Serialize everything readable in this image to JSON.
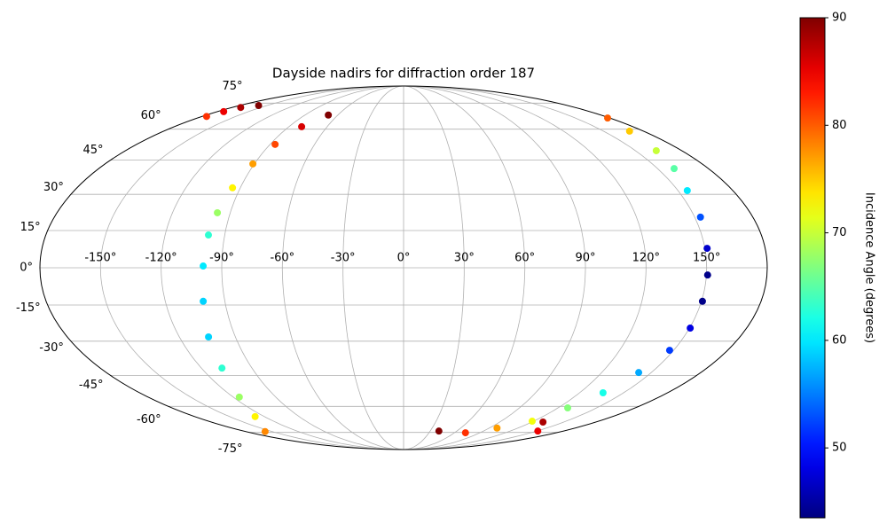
{
  "chart_data": {
    "type": "scatter",
    "projection": "mollweide",
    "colormap": "jet",
    "grid": true,
    "title": "Dayside nadirs for diffraction order 187",
    "colorbar_label": "Incidence Angle (degrees)",
    "xlim": [
      -180,
      180
    ],
    "ylim": [
      -90,
      90
    ],
    "xticks": [
      {
        "value": -150,
        "label": "-150°"
      },
      {
        "value": -120,
        "label": "-120°"
      },
      {
        "value": -90,
        "label": "-90°"
      },
      {
        "value": -60,
        "label": "-60°"
      },
      {
        "value": -30,
        "label": "-30°"
      },
      {
        "value": 0,
        "label": "0°"
      },
      {
        "value": 30,
        "label": "30°"
      },
      {
        "value": 60,
        "label": "60°"
      },
      {
        "value": 90,
        "label": "90°"
      },
      {
        "value": 120,
        "label": "120°"
      },
      {
        "value": 150,
        "label": "150°"
      }
    ],
    "yticks": [
      {
        "value": -75,
        "label": "-75°"
      },
      {
        "value": -60,
        "label": "-60°"
      },
      {
        "value": -45,
        "label": "-45°"
      },
      {
        "value": -30,
        "label": "-30°"
      },
      {
        "value": -15,
        "label": "-15°"
      },
      {
        "value": 0,
        "label": "0°"
      },
      {
        "value": 15,
        "label": "15°"
      },
      {
        "value": 30,
        "label": "30°"
      },
      {
        "value": 45,
        "label": "45°"
      },
      {
        "value": 60,
        "label": "60°"
      },
      {
        "value": 75,
        "label": "75°"
      }
    ],
    "clim": [
      43.5,
      90
    ],
    "cticks": [
      50,
      60,
      70,
      80,
      90
    ],
    "x": [
      -68.7,
      -80.0,
      -86.6,
      -90.9,
      -94.3,
      -96.7,
      -98.2,
      -99.2,
      -100.9,
      -104.4,
      -107.8,
      -115.7,
      -128,
      -158,
      -176,
      -174,
      -171,
      -159,
      178.1,
      169.6,
      163.5,
      159.8,
      155.1,
      153.0,
      151.1,
      150.6,
      150.5,
      150.4,
      147.8,
      142.4,
      136.0,
      127.5,
      118.7,
      98.1,
      73.0,
      39.8,
      130.5,
      151.3
    ],
    "y": [
      67.7,
      61.3,
      52.4,
      43.3,
      32.8,
      22.3,
      13.2,
      0.7,
      -13.5,
      -28.2,
      -41.7,
      -55.3,
      -65.5,
      -74.4,
      66.9,
      69.7,
      72.2,
      73.4,
      66.0,
      59.0,
      49.4,
      41.2,
      31.6,
      20.5,
      7.8,
      -2.9,
      -13.5,
      -24.5,
      -33.9,
      -43.7,
      -53.2,
      -60.8,
      -68.1,
      -72.2,
      -75.2,
      -74.1,
      -68.6,
      -74.1
    ],
    "values": [
      90,
      86,
      81,
      77,
      73,
      68,
      63,
      60,
      59,
      59,
      63,
      68,
      73,
      78,
      82,
      85,
      88,
      90,
      80,
      75,
      70,
      65,
      60,
      53,
      47,
      44,
      44,
      48,
      52,
      57,
      62,
      67,
      72,
      77,
      82,
      90,
      88,
      85
    ]
  }
}
